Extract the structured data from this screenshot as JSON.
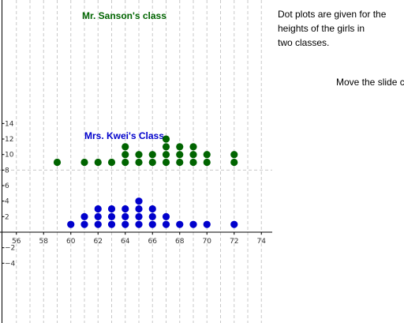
{
  "description_text": "Dot plots are given for the\nheights of the girls in\ntwo classes.",
  "instruction_text": "Move the slide\ncomplete the p",
  "colors": {
    "sanson": "#006400",
    "kwei": "#0000cc",
    "grid": "#c8c8c8",
    "axis": "#000000"
  },
  "chart_data": {
    "type": "scatter",
    "x_ticks": [
      56,
      58,
      60,
      62,
      64,
      66,
      68,
      70,
      72,
      74
    ],
    "y_ticks": [
      -4,
      -2,
      2,
      4,
      6,
      8,
      10,
      12,
      14
    ],
    "xlim": [
      55,
      75
    ],
    "ylim": [
      -5,
      15
    ],
    "grid": true,
    "plots": [
      {
        "title": "Mr. Sanson's class",
        "color": "#006400",
        "points": [
          [
            59,
            9
          ],
          [
            61,
            9
          ],
          [
            62,
            9
          ],
          [
            63,
            9
          ],
          [
            64,
            9
          ],
          [
            64,
            10
          ],
          [
            64,
            11
          ],
          [
            65,
            9
          ],
          [
            65,
            10
          ],
          [
            66,
            9
          ],
          [
            66,
            10
          ],
          [
            67,
            9
          ],
          [
            67,
            10
          ],
          [
            67,
            11
          ],
          [
            67,
            12
          ],
          [
            68,
            9
          ],
          [
            68,
            10
          ],
          [
            68,
            11
          ],
          [
            69,
            9
          ],
          [
            69,
            10
          ],
          [
            69,
            11
          ],
          [
            70,
            9
          ],
          [
            70,
            10
          ],
          [
            72,
            9
          ],
          [
            72,
            10
          ]
        ]
      },
      {
        "title": "Mrs. Kwei's Class",
        "color": "#0000cc",
        "points": [
          [
            60,
            1
          ],
          [
            61,
            1
          ],
          [
            61,
            2
          ],
          [
            62,
            1
          ],
          [
            62,
            2
          ],
          [
            62,
            3
          ],
          [
            63,
            1
          ],
          [
            63,
            2
          ],
          [
            63,
            3
          ],
          [
            64,
            1
          ],
          [
            64,
            2
          ],
          [
            64,
            3
          ],
          [
            65,
            1
          ],
          [
            65,
            2
          ],
          [
            65,
            3
          ],
          [
            65,
            4
          ],
          [
            66,
            1
          ],
          [
            66,
            2
          ],
          [
            66,
            3
          ],
          [
            67,
            1
          ],
          [
            67,
            2
          ],
          [
            68,
            1
          ],
          [
            69,
            1
          ],
          [
            70,
            1
          ],
          [
            72,
            1
          ]
        ]
      }
    ]
  }
}
